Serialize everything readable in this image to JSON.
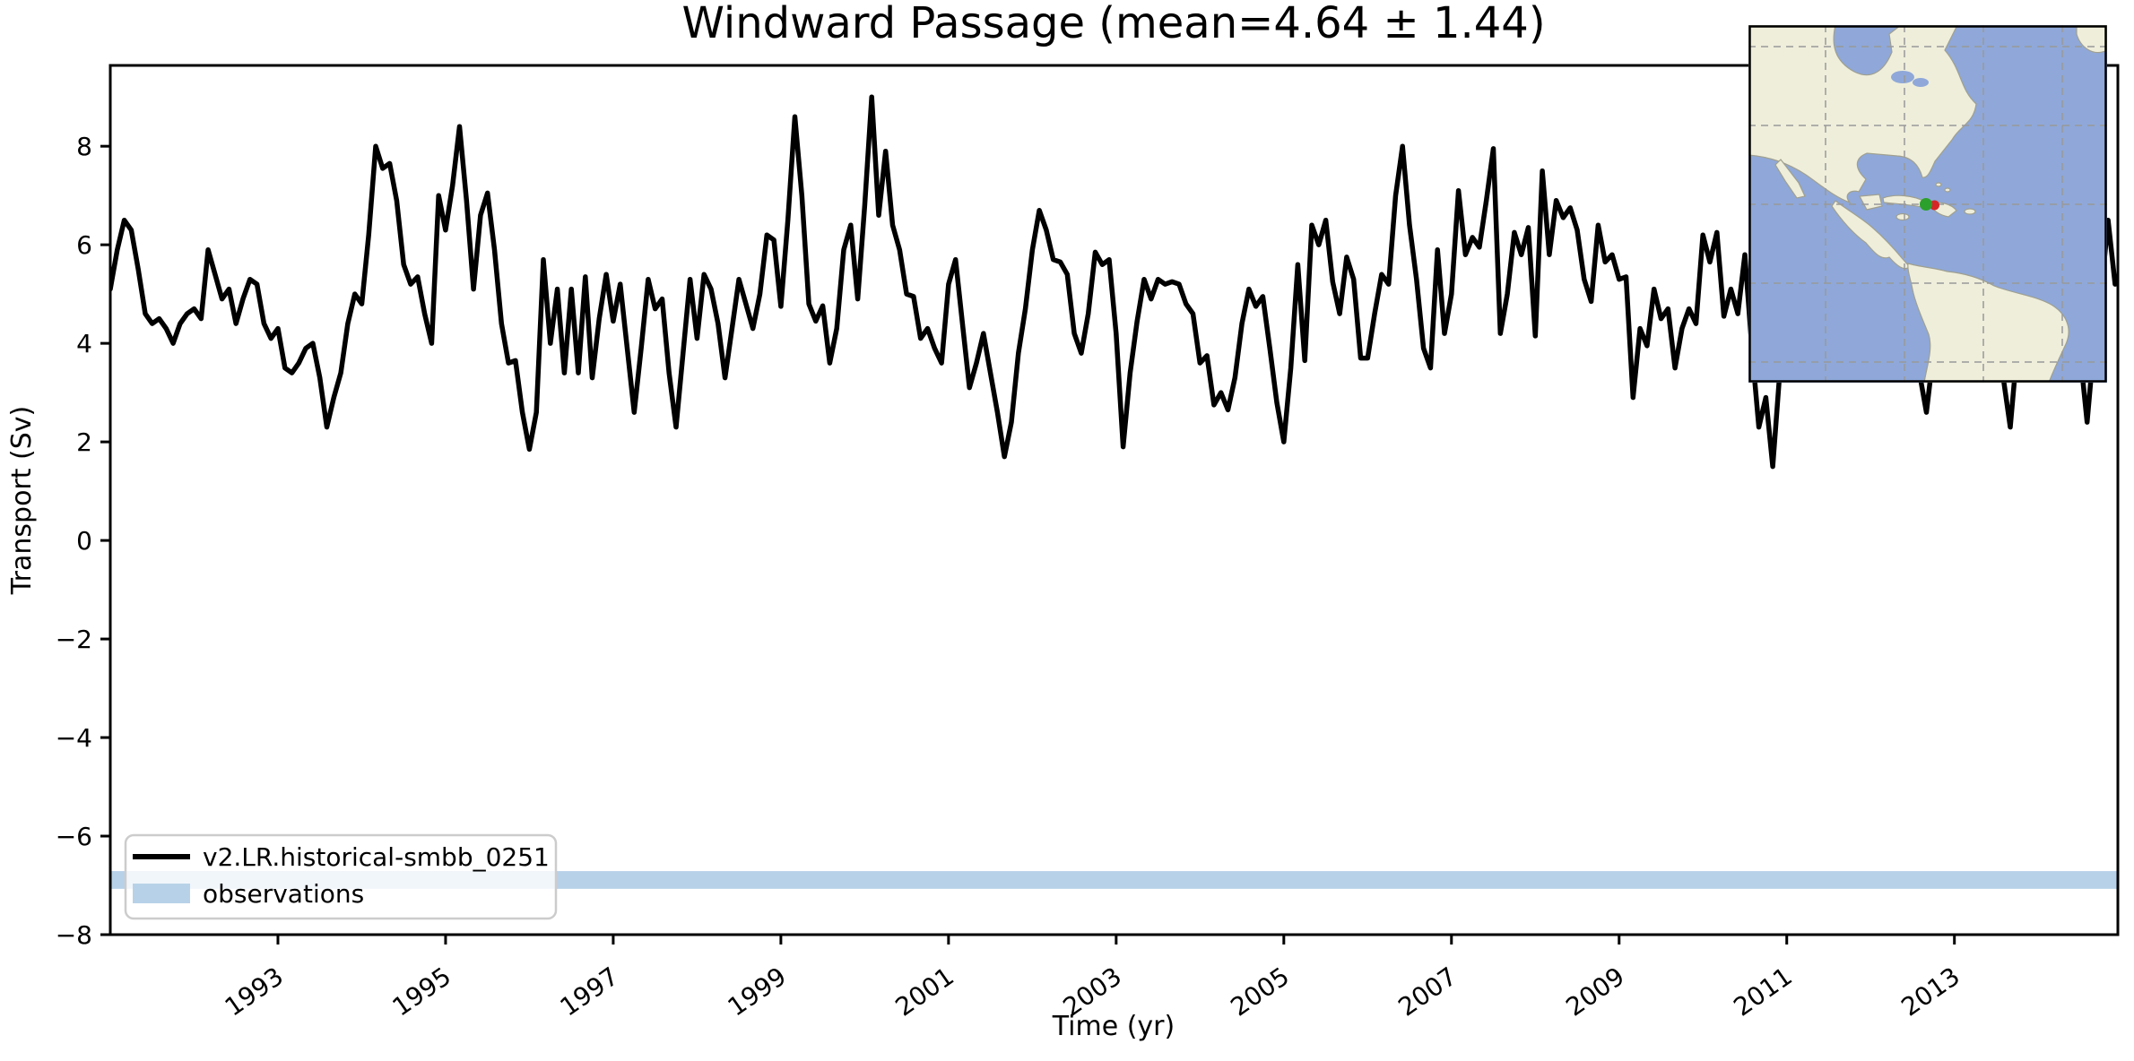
{
  "title": "Windward Passage (mean=4.64 ± 1.44)",
  "colors": {
    "line": "#000000",
    "obs_band": "#b7d2e8",
    "map_ocean": "#8fa8d9",
    "map_land": "#efeedb",
    "marker_green": "#2ca02c",
    "marker_red": "#d62728"
  },
  "legend": {
    "series_label": "v2.LR.historical-smbb_0251",
    "band_label": "observations"
  },
  "chart_data": {
    "type": "line",
    "title": "Windward Passage (mean=4.64 ± 1.44)",
    "xlabel": "Time (yr)",
    "ylabel": "Transport (Sv)",
    "xlim": [
      1991.0,
      2014.95
    ],
    "ylim": [
      -8.0,
      9.64
    ],
    "xticks": [
      1993,
      1995,
      1997,
      1999,
      2001,
      2003,
      2005,
      2007,
      2009,
      2011,
      2013
    ],
    "yticks": [
      -8,
      -6,
      -4,
      -2,
      0,
      2,
      4,
      6,
      8
    ],
    "grid": false,
    "legend_position": "lower left",
    "stats": {
      "mean": 4.64,
      "std": 1.44
    },
    "observations_band": {
      "label": "observations",
      "ymin": -7.07,
      "ymax": -6.71
    },
    "series": [
      {
        "name": "v2.LR.historical-smbb_0251",
        "x_start": 1991.0,
        "x_step": 0.08333,
        "values": [
          5.1,
          5.9,
          6.5,
          6.3,
          5.5,
          4.6,
          4.4,
          4.5,
          4.3,
          4.0,
          4.4,
          4.6,
          4.7,
          4.5,
          5.9,
          5.4,
          4.9,
          5.1,
          4.4,
          4.9,
          5.3,
          5.2,
          4.4,
          4.1,
          4.3,
          3.5,
          3.4,
          3.6,
          3.9,
          4.0,
          3.3,
          2.3,
          2.9,
          3.4,
          4.4,
          5.0,
          4.8,
          6.2,
          8.0,
          7.55,
          7.65,
          6.9,
          5.6,
          5.2,
          5.35,
          4.6,
          4.0,
          7.0,
          6.3,
          7.2,
          8.4,
          6.9,
          5.1,
          6.6,
          7.05,
          5.9,
          4.4,
          3.6,
          3.65,
          2.6,
          1.85,
          2.6,
          5.7,
          4.0,
          5.1,
          3.4,
          5.1,
          3.4,
          5.35,
          3.3,
          4.5,
          5.4,
          4.45,
          5.2,
          3.9,
          2.6,
          3.9,
          5.3,
          4.7,
          4.9,
          3.4,
          2.3,
          3.8,
          5.3,
          4.1,
          5.4,
          5.1,
          4.4,
          3.3,
          4.3,
          5.3,
          4.8,
          4.3,
          5.0,
          6.2,
          6.1,
          4.75,
          6.5,
          8.6,
          7.0,
          4.8,
          4.45,
          4.76,
          3.6,
          4.3,
          5.9,
          6.4,
          4.9,
          6.8,
          9.0,
          6.6,
          7.9,
          6.4,
          5.9,
          5.0,
          4.95,
          4.1,
          4.3,
          3.9,
          3.6,
          5.2,
          5.7,
          4.4,
          3.1,
          3.6,
          4.2,
          3.4,
          2.6,
          1.7,
          2.4,
          3.8,
          4.7,
          5.9,
          6.7,
          6.3,
          5.7,
          5.65,
          5.4,
          4.2,
          3.8,
          4.6,
          5.85,
          5.6,
          5.7,
          4.2,
          1.9,
          3.4,
          4.45,
          5.3,
          4.9,
          5.3,
          5.2,
          5.25,
          5.2,
          4.8,
          4.6,
          3.6,
          3.75,
          2.75,
          3.0,
          2.65,
          3.3,
          4.4,
          5.1,
          4.75,
          4.95,
          3.9,
          2.8,
          2.0,
          3.5,
          5.6,
          3.65,
          6.4,
          6.0,
          6.5,
          5.25,
          4.6,
          5.75,
          5.3,
          3.7,
          3.7,
          4.6,
          5.4,
          5.2,
          7.0,
          8.0,
          6.4,
          5.3,
          3.9,
          3.5,
          5.9,
          4.2,
          5.0,
          7.1,
          5.8,
          6.15,
          5.95,
          6.9,
          7.95,
          4.2,
          5.0,
          6.25,
          5.8,
          6.35,
          4.15,
          7.5,
          5.8,
          6.9,
          6.55,
          6.75,
          6.3,
          5.3,
          4.85,
          6.4,
          5.65,
          5.8,
          5.3,
          5.35,
          2.9,
          4.3,
          3.95,
          5.1,
          4.5,
          4.7,
          3.5,
          4.3,
          4.7,
          4.4,
          6.2,
          5.65,
          6.25,
          4.55,
          5.1,
          4.6,
          5.8,
          3.9,
          2.3,
          2.9,
          1.5,
          3.4,
          4.6,
          5.2,
          5.8,
          4.9,
          4.2,
          5.5,
          6.1,
          5.4,
          4.7,
          4.0,
          4.8,
          5.6,
          5.0,
          4.4,
          5.9,
          6.3,
          5.2,
          4.6,
          3.9,
          3.4,
          2.6,
          3.8,
          4.9,
          5.7,
          5.3,
          4.8,
          5.5,
          6.0,
          5.1,
          4.3,
          3.7,
          3.3,
          2.3,
          3.9,
          5.2,
          5.8,
          5.4,
          4.9,
          5.7,
          6.1,
          5.3,
          4.5,
          3.8,
          2.4,
          4.0,
          5.0,
          6.5,
          5.2
        ]
      }
    ]
  },
  "inset_map": {
    "description": "Americas locator map",
    "markers": [
      {
        "name": "green-marker"
      },
      {
        "name": "red-marker"
      }
    ]
  }
}
